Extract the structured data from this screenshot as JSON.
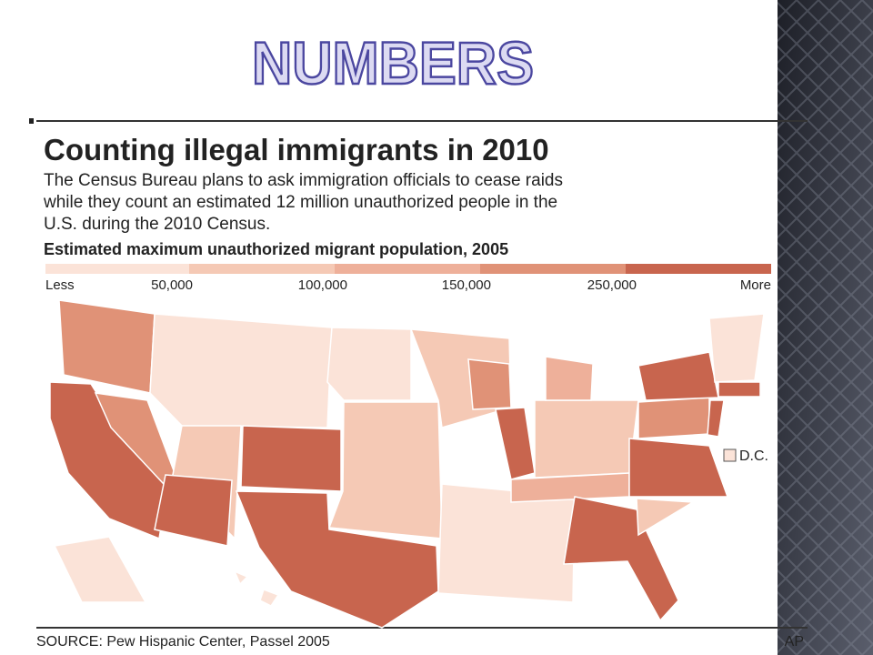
{
  "slide": {
    "title": "NUMBERS"
  },
  "graphic": {
    "title": "Counting illegal immigrants in 2010",
    "subtitle_lines": [
      "The Census Bureau plans to ask immigration officials to cease raids",
      "while they count an estimated 12 million unauthorized people in the",
      "U.S. during the 2010 Census."
    ],
    "legend": {
      "title": "Estimated maximum unauthorized migrant population, 2005",
      "labels": [
        "Less",
        "50,000",
        "100,000",
        "150,000",
        "250,000",
        "More"
      ]
    },
    "dc_label": "D.C.",
    "source": "SOURCE: Pew Hispanic Center, Passel 2005",
    "credit": "AP"
  }
}
